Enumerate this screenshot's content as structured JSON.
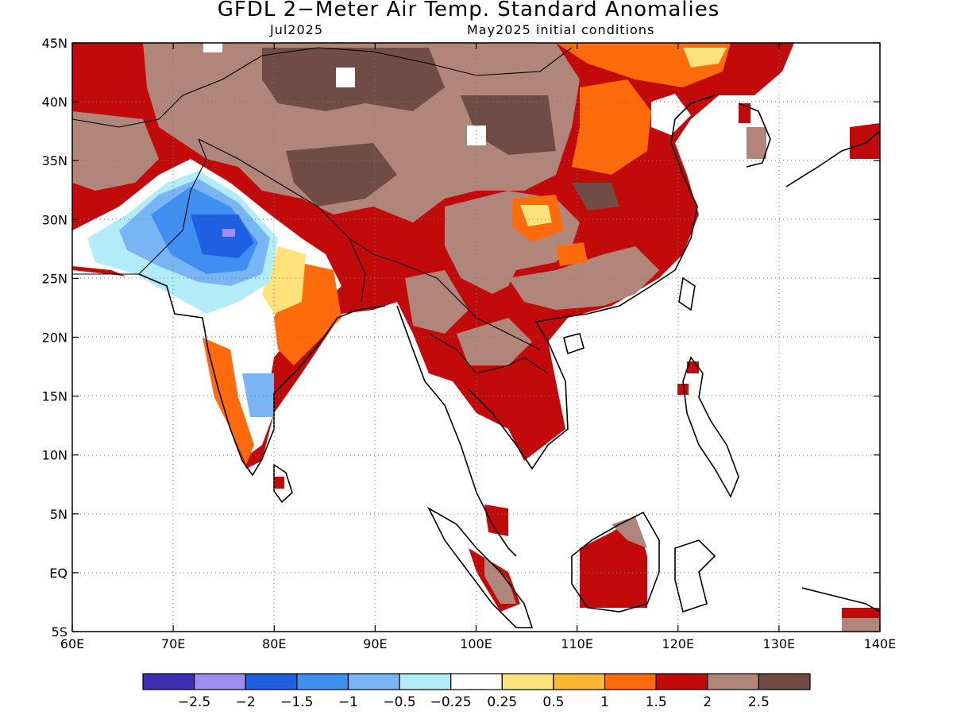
{
  "header": {
    "title": "GFDL 2−Meter Air Temp. Standard Anomalies",
    "valid_month": "Jul2025",
    "init": "May2025 initial conditions"
  },
  "map": {
    "lon_range": [
      60,
      140
    ],
    "lat_range": [
      -5,
      45
    ],
    "lon_ticks": [
      "60E",
      "70E",
      "80E",
      "90E",
      "100E",
      "110E",
      "120E",
      "130E",
      "140E"
    ],
    "lat_ticks": [
      "5S",
      "EQ",
      "5N",
      "10N",
      "15N",
      "20N",
      "25N",
      "30N",
      "35N",
      "40N",
      "45N"
    ],
    "grid": "dotted"
  },
  "colorbar": {
    "colors": [
      "#3f2fb4",
      "#9f8cf3",
      "#1f5fe1",
      "#3e8ff0",
      "#79b5f5",
      "#b2ecf9",
      "#ffffff",
      "#ffe27a",
      "#ffb733",
      "#ff6a0a",
      "#c20a0a",
      "#b0857a",
      "#704c44"
    ],
    "labels": [
      "−2.5",
      "−2",
      "−1.5",
      "−1",
      "−0.5",
      "−0.25",
      "0.25",
      "0.5",
      "1",
      "1.5",
      "2",
      "2.5"
    ]
  }
}
